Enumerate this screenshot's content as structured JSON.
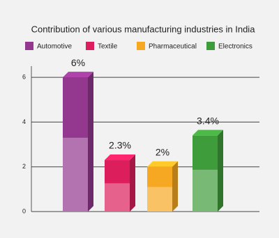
{
  "chart_data": {
    "type": "bar3d",
    "title": "Contribution of various manufacturing industries in India",
    "categories": [
      "Automotive",
      "Textile",
      "Pharmaceutical",
      "Electronics"
    ],
    "values": [
      6,
      2.3,
      2,
      3.4
    ],
    "value_labels": [
      "6%",
      "2.3%",
      "2%",
      "3.4%"
    ],
    "colors": [
      "#93378f",
      "#dc1f5c",
      "#f7a823",
      "#3e9d3a"
    ],
    "ylim": [
      0,
      6.5
    ],
    "yticks": [
      0,
      2,
      4,
      6
    ],
    "grid": true,
    "legend": "top"
  }
}
